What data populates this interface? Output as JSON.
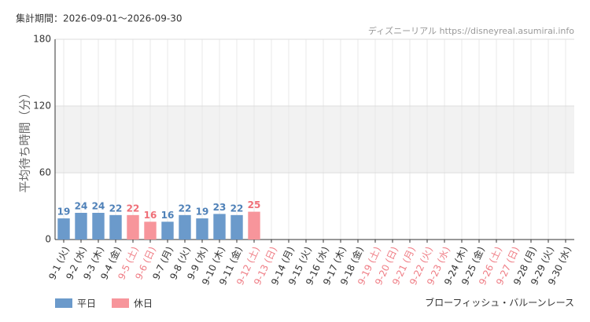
{
  "header": {
    "period": "集計期間：2026-09-01〜2026-09-30",
    "source": "ディズニーリアル https://disneyreal.asumirai.info"
  },
  "chart_data": {
    "type": "bar",
    "subtitle": "ブローフィッシュ・バルーンレース",
    "y_label": "平均待ち時間（分）",
    "categories": [
      "9-1 (火)",
      "9-2 (水)",
      "9-3 (木)",
      "9-4 (金)",
      "9-5 (土)",
      "9-6 (日)",
      "9-7 (月)",
      "9-8 (火)",
      "9-9 (水)",
      "9-10 (木)",
      "9-11 (金)",
      "9-12 (土)",
      "9-13 (日)",
      "9-14 (月)",
      "9-15 (火)",
      "9-16 (水)",
      "9-17 (木)",
      "9-18 (金)",
      "9-19 (土)",
      "9-20 (日)",
      "9-21 (月)",
      "9-22 (火)",
      "9-23 (水)",
      "9-24 (木)",
      "9-25 (金)",
      "9-26 (土)",
      "9-27 (日)",
      "9-28 (月)",
      "9-29 (火)",
      "9-30 (水)"
    ],
    "category_label_colors": [
      "#333",
      "#333",
      "#333",
      "#333",
      "#ef7e86",
      "#ef7e86",
      "#333",
      "#333",
      "#333",
      "#333",
      "#333",
      "#ef7e86",
      "#ef7e86",
      "#333",
      "#333",
      "#333",
      "#333",
      "#333",
      "#ef7e86",
      "#ef7e86",
      "#ef7e86",
      "#ef7e86",
      "#ef7e86",
      "#333",
      "#333",
      "#ef7e86",
      "#ef7e86",
      "#333",
      "#333",
      "#333"
    ],
    "series": [
      {
        "name": "平日",
        "color": "#6b9acb",
        "label_color": "#4f81b8",
        "values": [
          19,
          24,
          24,
          22,
          null,
          null,
          16,
          22,
          19,
          23,
          22,
          null,
          null,
          null,
          null,
          null,
          null,
          null,
          null,
          null,
          null,
          null,
          null,
          null,
          null,
          null,
          null,
          null,
          null,
          null
        ]
      },
      {
        "name": "休日",
        "color": "#f7959b",
        "label_color": "#ef6f78",
        "values": [
          null,
          null,
          null,
          null,
          22,
          16,
          null,
          null,
          null,
          null,
          null,
          25,
          null,
          null,
          null,
          null,
          null,
          null,
          null,
          null,
          null,
          null,
          null,
          null,
          null,
          null,
          null,
          null,
          null,
          null
        ]
      }
    ],
    "ylim": [
      0,
      180
    ],
    "yticks": [
      0,
      60,
      120,
      180
    ],
    "band": [
      60,
      120
    ],
    "grid": true,
    "legend": "bottom-left"
  }
}
